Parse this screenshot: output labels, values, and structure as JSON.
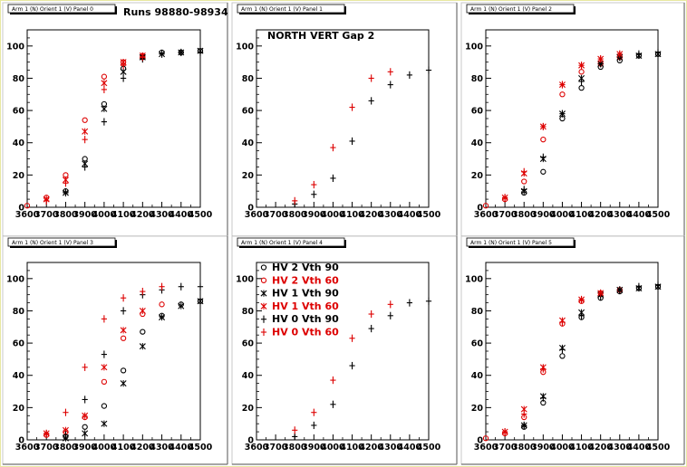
{
  "figure": {
    "runs_label": "Runs 98880-98934",
    "annotation": "NORTH VERT Gap 2",
    "legend": [
      {
        "label": "HV 2 Vth 90",
        "color": "#000000",
        "marker": "circle"
      },
      {
        "label": "HV 2 Vth 60",
        "color": "#dd0000",
        "marker": "circle"
      },
      {
        "label": "HV 1 Vth 90",
        "color": "#000000",
        "marker": "star"
      },
      {
        "label": "HV 1 Vth 60",
        "color": "#dd0000",
        "marker": "star"
      },
      {
        "label": "HV 0 Vth 90",
        "color": "#000000",
        "marker": "plus"
      },
      {
        "label": "HV 0 Vth 60",
        "color": "#dd0000",
        "marker": "plus"
      }
    ]
  },
  "chart_data": [
    {
      "type": "scatter",
      "title": "Arm 1 (N) Orient 1 (V) Panel 0",
      "xlim": [
        3600,
        4500
      ],
      "ylim": [
        0,
        110
      ],
      "xticks": [
        3600,
        3700,
        3800,
        3900,
        4000,
        4100,
        4200,
        4300,
        4400,
        4500
      ],
      "yticks": [
        0,
        20,
        40,
        60,
        80,
        100
      ],
      "series": [
        {
          "name": "HV 2 Vth 90",
          "x": [
            3800,
            3900,
            4000,
            4100,
            4200,
            4300,
            4400,
            4500
          ],
          "y": [
            10,
            30,
            64,
            86,
            93,
            96,
            96,
            97
          ]
        },
        {
          "name": "HV 2 Vth 60",
          "x": [
            3600,
            3700,
            3800,
            3900,
            4000,
            4100,
            4200
          ],
          "y": [
            1,
            6,
            20,
            54,
            81,
            90,
            94
          ]
        },
        {
          "name": "HV 1 Vth 90",
          "x": [
            3800,
            3900,
            4000,
            4100,
            4200,
            4300,
            4400,
            4500
          ],
          "y": [
            9,
            27,
            61,
            84,
            93,
            95,
            96,
            97
          ]
        },
        {
          "name": "HV 1 Vth 60",
          "x": [
            3700,
            3800,
            3900,
            4000,
            4100,
            4200
          ],
          "y": [
            5,
            17,
            47,
            77,
            90,
            94
          ]
        },
        {
          "name": "HV 0 Vth 90",
          "x": [
            3800,
            3900,
            4000,
            4100,
            4200,
            4300,
            4400,
            4500
          ],
          "y": [
            9,
            25,
            53,
            80,
            92,
            95,
            96,
            96
          ]
        },
        {
          "name": "HV 0 Vth 60",
          "x": [
            3700,
            3800,
            3900,
            4000,
            4100,
            4200
          ],
          "y": [
            4,
            15,
            42,
            73,
            88,
            93
          ]
        }
      ]
    },
    {
      "type": "scatter",
      "title": "Arm 1 (N) Orient 1 (V) Panel 1",
      "xlim": [
        3600,
        4500
      ],
      "ylim": [
        0,
        110
      ],
      "xticks": [
        3600,
        3700,
        3800,
        3900,
        4000,
        4100,
        4200,
        4300,
        4400,
        4500
      ],
      "yticks": [
        0,
        20,
        40,
        60,
        80,
        100
      ],
      "series": [
        {
          "name": "HV 0 Vth 90",
          "x": [
            3800,
            3900,
            4000,
            4100,
            4200,
            4300,
            4400,
            4500
          ],
          "y": [
            2,
            8,
            18,
            41,
            66,
            76,
            82,
            85
          ]
        },
        {
          "name": "HV 0 Vth 60",
          "x": [
            3800,
            3900,
            4000,
            4100,
            4200,
            4300
          ],
          "y": [
            4,
            14,
            37,
            62,
            80,
            84
          ]
        }
      ]
    },
    {
      "type": "scatter",
      "title": "Arm 1 (N) Orient 1 (V) Panel 2",
      "xlim": [
        3600,
        4500
      ],
      "ylim": [
        0,
        110
      ],
      "xticks": [
        3600,
        3700,
        3800,
        3900,
        4000,
        4100,
        4200,
        4300,
        4400,
        4500
      ],
      "yticks": [
        0,
        20,
        40,
        60,
        80,
        100
      ],
      "series": [
        {
          "name": "HV 2 Vth 90",
          "x": [
            3800,
            3900,
            4000,
            4100,
            4200,
            4300,
            4400,
            4500
          ],
          "y": [
            9,
            22,
            55,
            74,
            87,
            91,
            94,
            95
          ]
        },
        {
          "name": "HV 2 Vth 60",
          "x": [
            3600,
            3700,
            3800,
            3900,
            4000,
            4100,
            4200,
            4300
          ],
          "y": [
            1,
            5,
            16,
            42,
            70,
            84,
            89,
            93
          ]
        },
        {
          "name": "HV 1 Vth 90",
          "x": [
            3800,
            3900,
            4000,
            4100,
            4200,
            4300,
            4400,
            4500
          ],
          "y": [
            10,
            30,
            58,
            80,
            89,
            93,
            94,
            95
          ]
        },
        {
          "name": "HV 1 Vth 60",
          "x": [
            3700,
            3800,
            3900,
            4000,
            4100,
            4200,
            4300
          ],
          "y": [
            6,
            21,
            50,
            76,
            88,
            92,
            95
          ]
        },
        {
          "name": "HV 0 Vth 90",
          "x": [
            3800,
            3900,
            4000,
            4100,
            4200,
            4300,
            4400,
            4500
          ],
          "y": [
            11,
            31,
            58,
            78,
            89,
            93,
            95,
            96
          ]
        },
        {
          "name": "HV 0 Vth 60",
          "x": [
            3700,
            3800,
            3900,
            4000,
            4100,
            4200,
            4300
          ],
          "y": [
            6,
            22,
            50,
            76,
            88,
            92,
            95
          ]
        }
      ]
    },
    {
      "type": "scatter",
      "title": "Arm 1 (N) Orient 1 (V) Panel 3",
      "xlim": [
        3600,
        4500
      ],
      "ylim": [
        0,
        110
      ],
      "xticks": [
        3600,
        3700,
        3800,
        3900,
        4000,
        4100,
        4200,
        4300,
        4400,
        4500
      ],
      "yticks": [
        0,
        20,
        40,
        60,
        80,
        100
      ],
      "series": [
        {
          "name": "HV 2 Vth 90",
          "x": [
            3800,
            3900,
            4000,
            4100,
            4200,
            4300,
            4400,
            4500
          ],
          "y": [
            2,
            8,
            21,
            43,
            67,
            77,
            84,
            86
          ]
        },
        {
          "name": "HV 2 Vth 60",
          "x": [
            3700,
            3800,
            3900,
            4000,
            4100,
            4200,
            4300
          ],
          "y": [
            3,
            5,
            14,
            36,
            63,
            78,
            84
          ]
        },
        {
          "name": "HV 1 Vth 90",
          "x": [
            3800,
            3900,
            4000,
            4100,
            4200,
            4300,
            4400,
            4500
          ],
          "y": [
            1,
            4,
            10,
            35,
            58,
            76,
            83,
            86
          ]
        },
        {
          "name": "HV 1 Vth 60",
          "x": [
            3700,
            3800,
            3900,
            4000,
            4100,
            4200
          ],
          "y": [
            4,
            6,
            15,
            45,
            68,
            80
          ]
        },
        {
          "name": "HV 0 Vth 90",
          "x": [
            3800,
            3900,
            4000,
            4100,
            4200,
            4300,
            4400,
            4500
          ],
          "y": [
            3,
            25,
            53,
            80,
            90,
            93,
            95,
            95
          ]
        },
        {
          "name": "HV 0 Vth 60",
          "x": [
            3700,
            3800,
            3900,
            4000,
            4100,
            4200,
            4300
          ],
          "y": [
            4,
            17,
            45,
            75,
            88,
            92,
            95
          ]
        }
      ]
    },
    {
      "type": "scatter",
      "title": "Arm 1 (N) Orient 1 (V) Panel 4",
      "xlim": [
        3600,
        4500
      ],
      "ylim": [
        0,
        110
      ],
      "xticks": [
        3600,
        3700,
        3800,
        3900,
        4000,
        4100,
        4200,
        4300,
        4400,
        4500
      ],
      "yticks": [
        0,
        20,
        40,
        60,
        80,
        100
      ],
      "series": [
        {
          "name": "HV 0 Vth 90",
          "x": [
            3800,
            3900,
            4000,
            4100,
            4200,
            4300,
            4400,
            4500
          ],
          "y": [
            2,
            9,
            22,
            46,
            69,
            77,
            85,
            86
          ]
        },
        {
          "name": "HV 0 Vth 60",
          "x": [
            3800,
            3900,
            4000,
            4100,
            4200,
            4300
          ],
          "y": [
            6,
            17,
            37,
            63,
            78,
            84
          ]
        }
      ]
    },
    {
      "type": "scatter",
      "title": "Arm 1 (N) Orient 1 (V) Panel 5",
      "xlim": [
        3600,
        4500
      ],
      "ylim": [
        0,
        110
      ],
      "xticks": [
        3600,
        3700,
        3800,
        3900,
        4000,
        4100,
        4200,
        4300,
        4400,
        4500
      ],
      "yticks": [
        0,
        20,
        40,
        60,
        80,
        100
      ],
      "series": [
        {
          "name": "HV 2 Vth 90",
          "x": [
            3800,
            3900,
            4000,
            4100,
            4200,
            4300,
            4400,
            4500
          ],
          "y": [
            8,
            23,
            52,
            76,
            88,
            92,
            94,
            95
          ]
        },
        {
          "name": "HV 2 Vth 60",
          "x": [
            3600,
            3700,
            3800,
            3900,
            4000,
            4100,
            4200,
            4300
          ],
          "y": [
            1,
            4,
            14,
            42,
            72,
            86,
            91,
            93
          ]
        },
        {
          "name": "HV 1 Vth 90",
          "x": [
            3800,
            3900,
            4000,
            4100,
            4200,
            4300,
            4400,
            4500
          ],
          "y": [
            9,
            27,
            57,
            79,
            90,
            93,
            94,
            95
          ]
        },
        {
          "name": "HV 1 Vth 60",
          "x": [
            3700,
            3800,
            3900,
            4000,
            4100,
            4200
          ],
          "y": [
            5,
            19,
            45,
            74,
            87,
            91
          ]
        },
        {
          "name": "HV 0 Vth 90",
          "x": [
            3800,
            3900,
            4000,
            4100,
            4200,
            4300,
            4400,
            4500
          ],
          "y": [
            9,
            26,
            56,
            77,
            89,
            93,
            95,
            96
          ]
        },
        {
          "name": "HV 0 Vth 60",
          "x": [
            3700,
            3800,
            3900,
            4000,
            4100,
            4200
          ],
          "y": [
            5,
            16,
            44,
            73,
            87,
            91
          ]
        }
      ]
    }
  ]
}
